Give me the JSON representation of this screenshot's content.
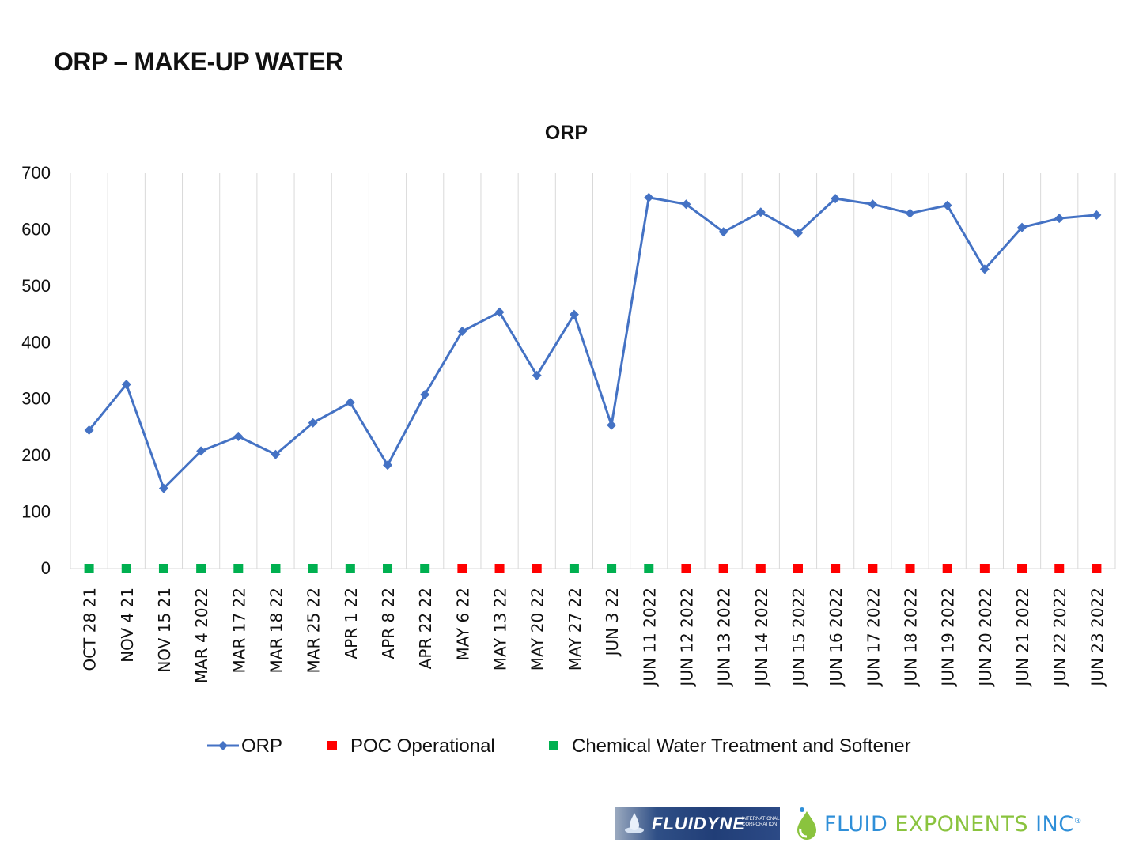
{
  "slide": {
    "title": "ORP – MAKE-UP WATER"
  },
  "chart_data": {
    "type": "line",
    "title": "ORP",
    "xlabel": "",
    "ylabel": "",
    "ylim": [
      0,
      700
    ],
    "yticks": [
      0,
      100,
      200,
      300,
      400,
      500,
      600,
      700
    ],
    "grid": "vertical",
    "legend": "bottom",
    "categories": [
      "OCT 28 21",
      "NOV 4 21",
      "NOV 15 21",
      "MAR 4 2022",
      "MAR 17 22",
      "MAR 18 22",
      "MAR 25 22",
      "APR 1 22",
      "APR 8 22",
      "APR 22 22",
      "MAY 6 22",
      "MAY 13 22",
      "MAY 20 22",
      "MAY 27 22",
      "JUN 3 22",
      "JUN 11 2022",
      "JUN 12 2022",
      "JUN 13 2022",
      "JUN 14 2022",
      "JUN 15 2022",
      "JUN 16 2022",
      "JUN 17 2022",
      "JUN 18 2022",
      "JUN 19 2022",
      "JUN 20 2022",
      "JUN 21 2022",
      "JUN 22 2022",
      "JUN 23 2022"
    ],
    "series": [
      {
        "name": "ORP",
        "color": "#4472c4",
        "marker": "diamond",
        "values": [
          245,
          326,
          142,
          208,
          234,
          202,
          258,
          294,
          183,
          308,
          420,
          454,
          342,
          450,
          254,
          657,
          645,
          596,
          631,
          594,
          655,
          645,
          629,
          643,
          530,
          604,
          620,
          626
        ]
      },
      {
        "name": "POC Operational",
        "color": "#ff0000",
        "marker": "square",
        "line": false,
        "values": [
          null,
          null,
          null,
          null,
          null,
          null,
          null,
          null,
          null,
          null,
          0,
          0,
          0,
          null,
          null,
          null,
          0,
          0,
          0,
          0,
          0,
          0,
          0,
          0,
          0,
          0,
          0,
          0
        ]
      },
      {
        "name": "Chemical Water Treatment and Softener",
        "color": "#00b050",
        "marker": "square",
        "line": false,
        "values": [
          0,
          0,
          0,
          0,
          0,
          0,
          0,
          0,
          0,
          0,
          null,
          null,
          null,
          0,
          0,
          0,
          null,
          null,
          null,
          null,
          null,
          null,
          null,
          null,
          null,
          null,
          null,
          null
        ]
      }
    ]
  },
  "logos": {
    "fluidyne_name": "FLUIDYNE",
    "fluidyne_sub1": "INTERNATIONAL",
    "fluidyne_sub2": "CORPORATION",
    "fe_part1": "FLUID ",
    "fe_part2": "EXPONENTS",
    "fe_part3": " INC",
    "fe_mark": "®"
  }
}
